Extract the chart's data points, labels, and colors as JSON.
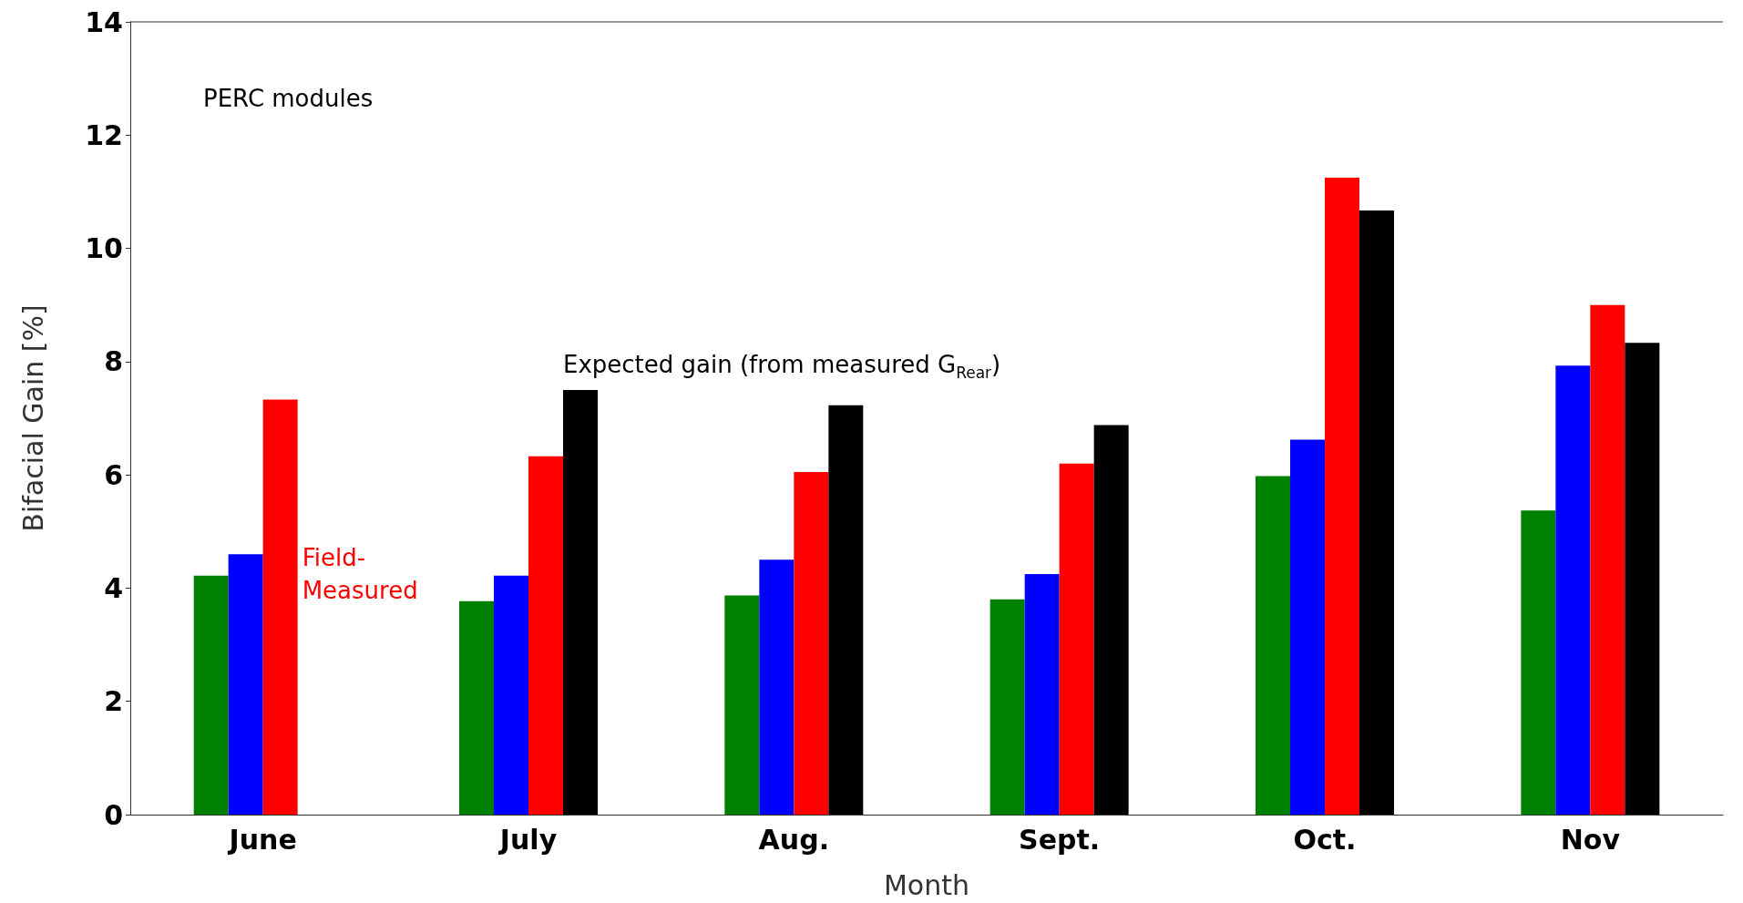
{
  "chart_data": {
    "type": "bar",
    "xlabel": "Month",
    "ylabel": "Bifacial Gain [%]",
    "categories": [
      "June",
      "July",
      "Aug.",
      "Sept.",
      "Oct.",
      "Nov"
    ],
    "series": [
      {
        "color": "#008000",
        "values": [
          4.22,
          3.77,
          3.87,
          3.8,
          5.98,
          5.37
        ]
      },
      {
        "color": "#0000ff",
        "values": [
          4.6,
          4.22,
          4.5,
          4.25,
          6.62,
          7.93
        ]
      },
      {
        "name": "Field-Measured",
        "color": "#ff0000",
        "values": [
          7.33,
          6.33,
          6.05,
          6.2,
          11.25,
          9.0
        ]
      },
      {
        "name": "Expected gain (from measured G$_{Rear}$)",
        "color": "#000000",
        "values": [
          null,
          7.5,
          7.23,
          6.88,
          10.67,
          8.33
        ]
      }
    ],
    "ylim": [
      0,
      14
    ],
    "yticks": [
      0,
      2,
      4,
      6,
      8,
      10,
      12,
      14
    ],
    "grid": false,
    "legend": false,
    "annotations": [
      "PERC modules"
    ]
  }
}
